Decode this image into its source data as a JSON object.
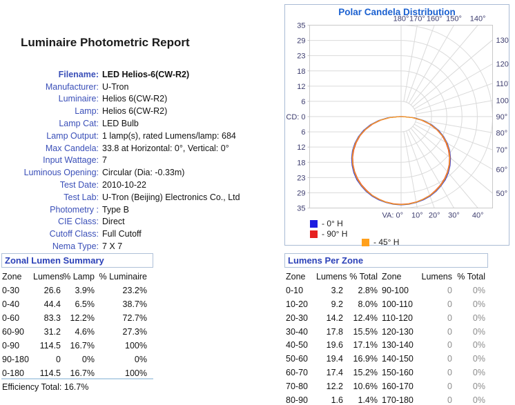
{
  "report": {
    "title": "Luminaire Photometric Report",
    "properties": [
      {
        "label": "Filename:",
        "value": "LED Helios-6(CW-R2)",
        "bold": true
      },
      {
        "label": "Manufacturer:",
        "value": "U-Tron"
      },
      {
        "label": "Luminaire:",
        "value": "Helios 6(CW-R2)"
      },
      {
        "label": "Lamp:",
        "value": "Helios 6(CW-R2)"
      },
      {
        "label": "Lamp Cat:",
        "value": "LED Bulb"
      },
      {
        "label": "Lamp Output:",
        "value": "1 lamp(s), rated Lumens/lamp: 684"
      },
      {
        "label": "Max Candela:",
        "value": "33.8 at Horizontal: 0°, Vertical: 0°"
      },
      {
        "label": "Input Wattage:",
        "value": "7"
      },
      {
        "label": "Luminous Opening:",
        "value": "Circular (Dia: -0.33m)"
      },
      {
        "label": "Test Date:",
        "value": "2010-10-22"
      },
      {
        "label": "Test Lab:",
        "value": "U-Tron (Beijing) Electronics Co., Ltd"
      },
      {
        "label": "Photometry :",
        "value": "Type B"
      },
      {
        "label": "CIE Class:",
        "value": "Direct"
      },
      {
        "label": "Cutoff Class:",
        "value": "Full Cutoff"
      },
      {
        "label": "Nema Type:",
        "value": "7 X 7"
      }
    ]
  },
  "zonal_summary": {
    "title": "Zonal Lumen Summary",
    "headers": [
      "Zone",
      "Lumens",
      "% Lamp",
      "% Luminaire"
    ],
    "rows": [
      [
        "0-30",
        "26.6",
        "3.9%",
        "23.2%"
      ],
      [
        "0-40",
        "44.4",
        "6.5%",
        "38.7%"
      ],
      [
        "0-60",
        "83.3",
        "12.2%",
        "72.7%"
      ],
      [
        "60-90",
        "31.2",
        "4.6%",
        "27.3%"
      ],
      [
        "0-90",
        "114.5",
        "16.7%",
        "100%"
      ],
      [
        "90-180",
        "0",
        "0%",
        "0%"
      ],
      [
        "0-180",
        "114.5",
        "16.7%",
        "100%"
      ]
    ],
    "efficiency_label": "Efficiency Total:",
    "efficiency_value": "16.7%"
  },
  "lumens_per_zone": {
    "title": "Lumens Per Zone",
    "headers": [
      "Zone",
      "Lumens",
      "% Total",
      "Zone",
      "Lumens",
      "% Total"
    ],
    "rows": [
      [
        "0-10",
        "3.2",
        "2.8%",
        "90-100",
        "0",
        "0%"
      ],
      [
        "10-20",
        "9.2",
        "8.0%",
        "100-110",
        "0",
        "0%"
      ],
      [
        "20-30",
        "14.2",
        "12.4%",
        "110-120",
        "0",
        "0%"
      ],
      [
        "30-40",
        "17.8",
        "15.5%",
        "120-130",
        "0",
        "0%"
      ],
      [
        "40-50",
        "19.6",
        "17.1%",
        "130-140",
        "0",
        "0%"
      ],
      [
        "50-60",
        "19.4",
        "16.9%",
        "140-150",
        "0",
        "0%"
      ],
      [
        "60-70",
        "17.4",
        "15.2%",
        "150-160",
        "0",
        "0%"
      ],
      [
        "70-80",
        "12.2",
        "10.6%",
        "160-170",
        "0",
        "0%"
      ],
      [
        "80-90",
        "1.6",
        "1.4%",
        "170-180",
        "0",
        "0%"
      ]
    ]
  },
  "chart_data": {
    "type": "line",
    "subtype": "polar-candela",
    "title": "Polar Candela Distribution",
    "cd_zero_label": "CD: 0",
    "va_zero_label": "VA: 0°",
    "ring_values": [
      6,
      12,
      18,
      23,
      29,
      35
    ],
    "max_cd": 35,
    "angle_labels_top": [
      "180°",
      "170°",
      "160°",
      "150°",
      "140°"
    ],
    "angle_labels_top_deg": [
      180,
      170,
      160,
      150,
      140
    ],
    "angle_labels_right": [
      "130°",
      "120°",
      "110°",
      "100°",
      "90°",
      "80°",
      "70°",
      "60°",
      "50°"
    ],
    "angle_labels_right_deg": [
      130,
      120,
      110,
      100,
      90,
      80,
      70,
      60,
      50
    ],
    "angle_labels_bottom": [
      "10°",
      "20°",
      "30°",
      "40°"
    ],
    "angle_labels_bottom_deg": [
      10,
      20,
      30,
      40
    ],
    "grid_step_deg": 10,
    "angles_deg": [
      0,
      5,
      10,
      15,
      20,
      25,
      30,
      35,
      40,
      45,
      50,
      55,
      60,
      65,
      70,
      75,
      80,
      85,
      90
    ],
    "series": [
      {
        "name": "- 0° H",
        "color": "#3434D0",
        "swatch": "#1C1CE0",
        "values": [
          33.8,
          33.7,
          33.4,
          33.0,
          32.4,
          31.6,
          30.6,
          29.5,
          28.1,
          26.5,
          24.7,
          22.7,
          20.4,
          17.9,
          15.2,
          12.2,
          8.8,
          5.0,
          0.6
        ]
      },
      {
        "name": "- 90° H",
        "color": "#E03A28",
        "swatch": "#E62020",
        "values": [
          33.6,
          33.5,
          33.2,
          32.7,
          32.1,
          31.2,
          30.2,
          29.0,
          27.6,
          26.0,
          24.2,
          22.1,
          19.8,
          17.3,
          14.5,
          11.4,
          8.0,
          4.4,
          0.8
        ]
      },
      {
        "name": "- 45° H",
        "color": "#F7A023",
        "swatch": "#FFA01C",
        "values": [
          33.7,
          33.6,
          33.3,
          32.8,
          32.2,
          31.4,
          30.4,
          29.2,
          27.8,
          26.2,
          24.4,
          22.4,
          20.1,
          17.6,
          14.8,
          11.8,
          8.4,
          4.7,
          0.4
        ]
      }
    ]
  },
  "colors": {
    "label_blue": "#3A4FB8",
    "panel_title_blue": "#2B41B8",
    "chart_title_blue": "#1A60D0",
    "axis_label": "#3C3C6E",
    "grid": "#DADADA",
    "plot_border": "#C8C8C8",
    "panel_border": "#A9BBD4",
    "muted_gray": "#8C8C8C"
  }
}
